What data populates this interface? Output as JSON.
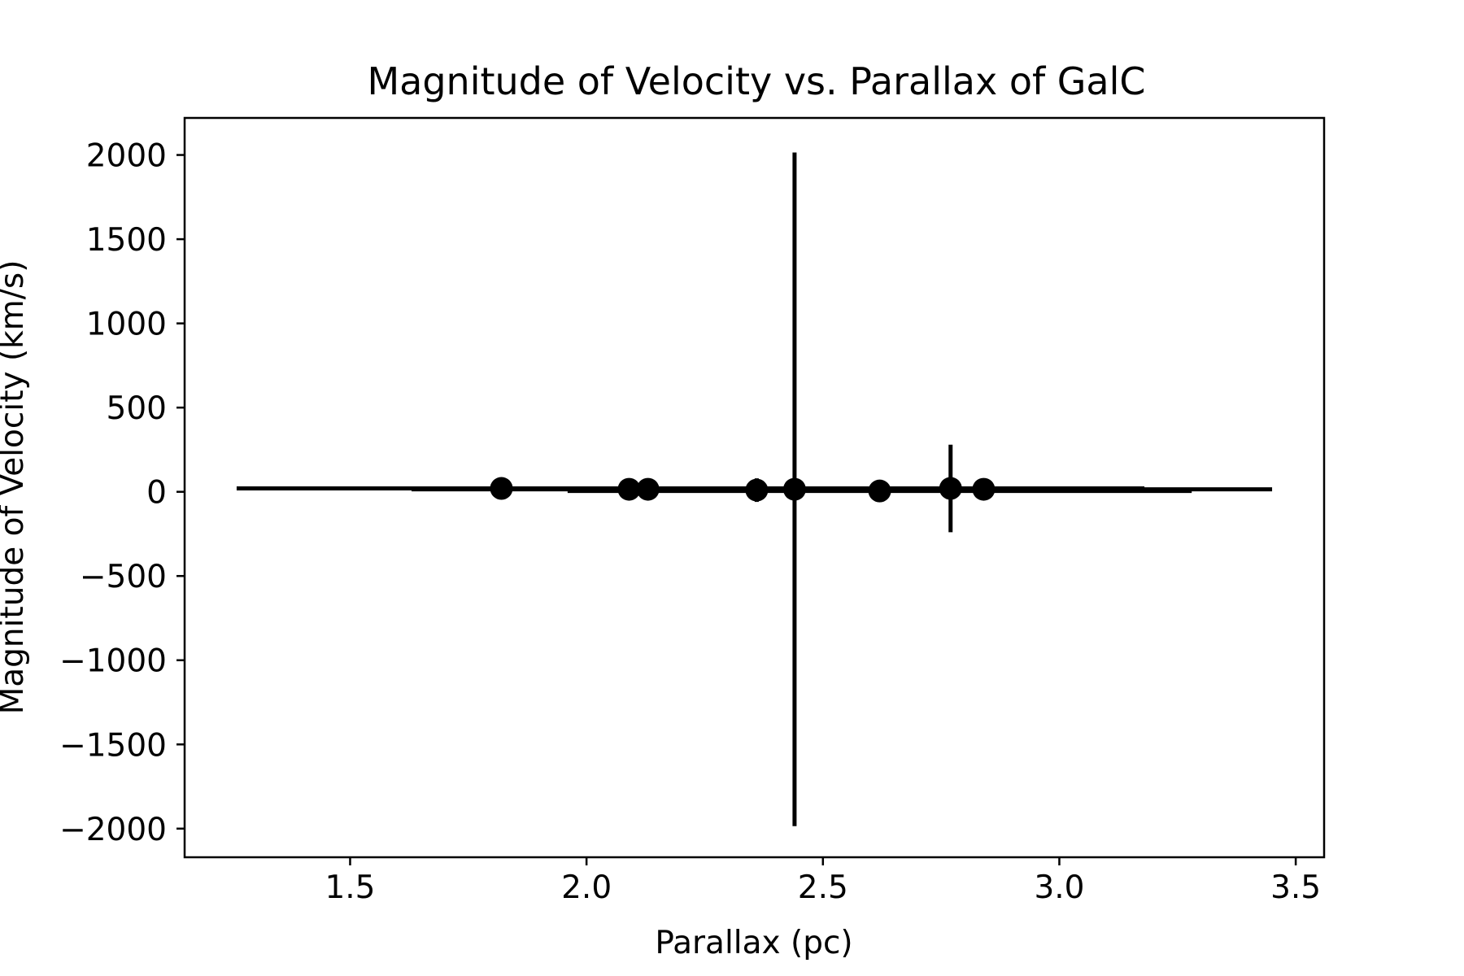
{
  "chart_data": {
    "type": "scatter",
    "title": "Magnitude of Velocity vs. Parallax of GalC",
    "xlabel": "Parallax (pc)",
    "ylabel": "Magnitude of Velocity (km/s)",
    "xlim": [
      1.15,
      3.56
    ],
    "ylim": [
      -2170,
      2220
    ],
    "xticks": [
      1.5,
      2.0,
      2.5,
      3.0,
      3.5
    ],
    "xtick_labels": [
      "1.5",
      "2.0",
      "2.5",
      "3.0",
      "3.5"
    ],
    "yticks": [
      2000,
      1500,
      1000,
      500,
      0,
      -500,
      -1000,
      -1500,
      -2000
    ],
    "ytick_labels": [
      "2000",
      "1500",
      "1000",
      "500",
      "0",
      "−500",
      "−1000",
      "−1500",
      "−2000"
    ],
    "grid": false,
    "marker_color": "#000000",
    "points": [
      {
        "x": 1.82,
        "y": 20,
        "xerr": [
          0.56,
          0.56
        ],
        "yerr": 0
      },
      {
        "x": 2.09,
        "y": 15,
        "xerr": [
          0.46,
          0.46
        ],
        "yerr": 0
      },
      {
        "x": 2.13,
        "y": 15,
        "xerr": [
          0.17,
          0.17
        ],
        "yerr": 0
      },
      {
        "x": 2.36,
        "y": 10,
        "xerr": [
          0.06,
          0.06
        ],
        "yerr": 70
      },
      {
        "x": 2.44,
        "y": 15,
        "xerr": [
          0.09,
          0.09
        ],
        "yerr": 2000
      },
      {
        "x": 2.62,
        "y": 5,
        "xerr": [
          0.66,
          0.66
        ],
        "yerr": 0
      },
      {
        "x": 2.77,
        "y": 20,
        "xerr": [
          0.41,
          0.41
        ],
        "yerr": 260
      },
      {
        "x": 2.84,
        "y": 15,
        "xerr": [
          0.61,
          0.61
        ],
        "yerr": 0
      }
    ]
  }
}
